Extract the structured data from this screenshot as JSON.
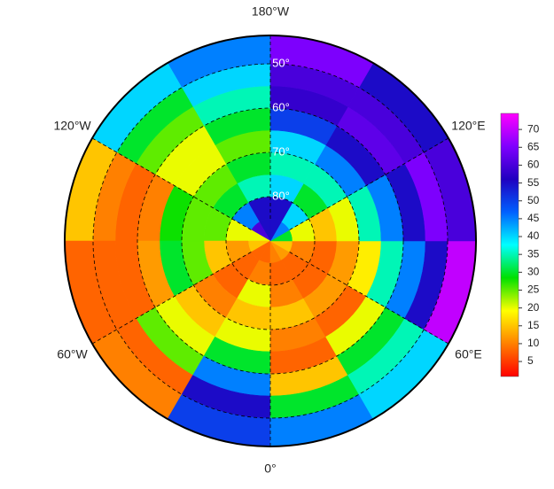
{
  "map": {
    "type": "polar-heatmap",
    "values": [
      [
        55,
        60,
        20,
        15,
        8,
        8,
        10,
        12,
        15,
        30,
        45,
        55
      ],
      [
        55,
        45,
        20,
        12,
        8,
        10,
        8,
        8,
        10,
        20,
        40,
        55
      ],
      [
        35,
        30,
        25,
        15,
        8,
        20,
        10,
        8,
        8,
        15,
        30,
        40
      ],
      [
        30,
        25,
        25,
        25,
        10,
        15,
        15,
        12,
        12,
        20,
        35,
        35
      ],
      [
        25,
        20,
        28,
        30,
        15,
        20,
        10,
        8,
        18,
        35,
        45,
        40
      ],
      [
        30,
        20,
        10,
        12,
        20,
        30,
        8,
        20,
        35,
        45,
        55,
        50
      ],
      [
        35,
        25,
        8,
        8,
        25,
        45,
        15,
        30,
        45,
        55,
        62,
        58
      ],
      [
        40,
        30,
        10,
        8,
        8,
        55,
        30,
        35,
        55,
        65,
        60,
        60
      ],
      [
        45,
        40,
        15,
        8,
        10,
        50,
        45,
        40,
        70,
        60,
        55,
        65
      ]
    ],
    "lat_ticks": [
      {
        "value": 50,
        "label": "50°"
      },
      {
        "value": 60,
        "label": "60°"
      },
      {
        "value": 70,
        "label": "70°"
      },
      {
        "value": 80,
        "label": "80°"
      }
    ],
    "lon_ticks": [
      {
        "value": -180,
        "label": "180°W"
      },
      {
        "value": -120,
        "label": "120°W"
      },
      {
        "value": 120,
        "label": "120°E"
      },
      {
        "value": -60,
        "label": "60°W"
      },
      {
        "value": 60,
        "label": "60°E"
      },
      {
        "value": 0,
        "label": "0°"
      }
    ],
    "colorbar": {
      "clim": [
        0.8,
        74.5
      ],
      "ticks": [
        5,
        10,
        15,
        20,
        25,
        30,
        35,
        40,
        45,
        50,
        55,
        60,
        65,
        70
      ],
      "colors": [
        "#ff0000",
        "#ff8000",
        "#ffff00",
        "#00e000",
        "#00ffff",
        "#0060ff",
        "#2000c0",
        "#8000ff",
        "#ff00ff"
      ]
    }
  }
}
